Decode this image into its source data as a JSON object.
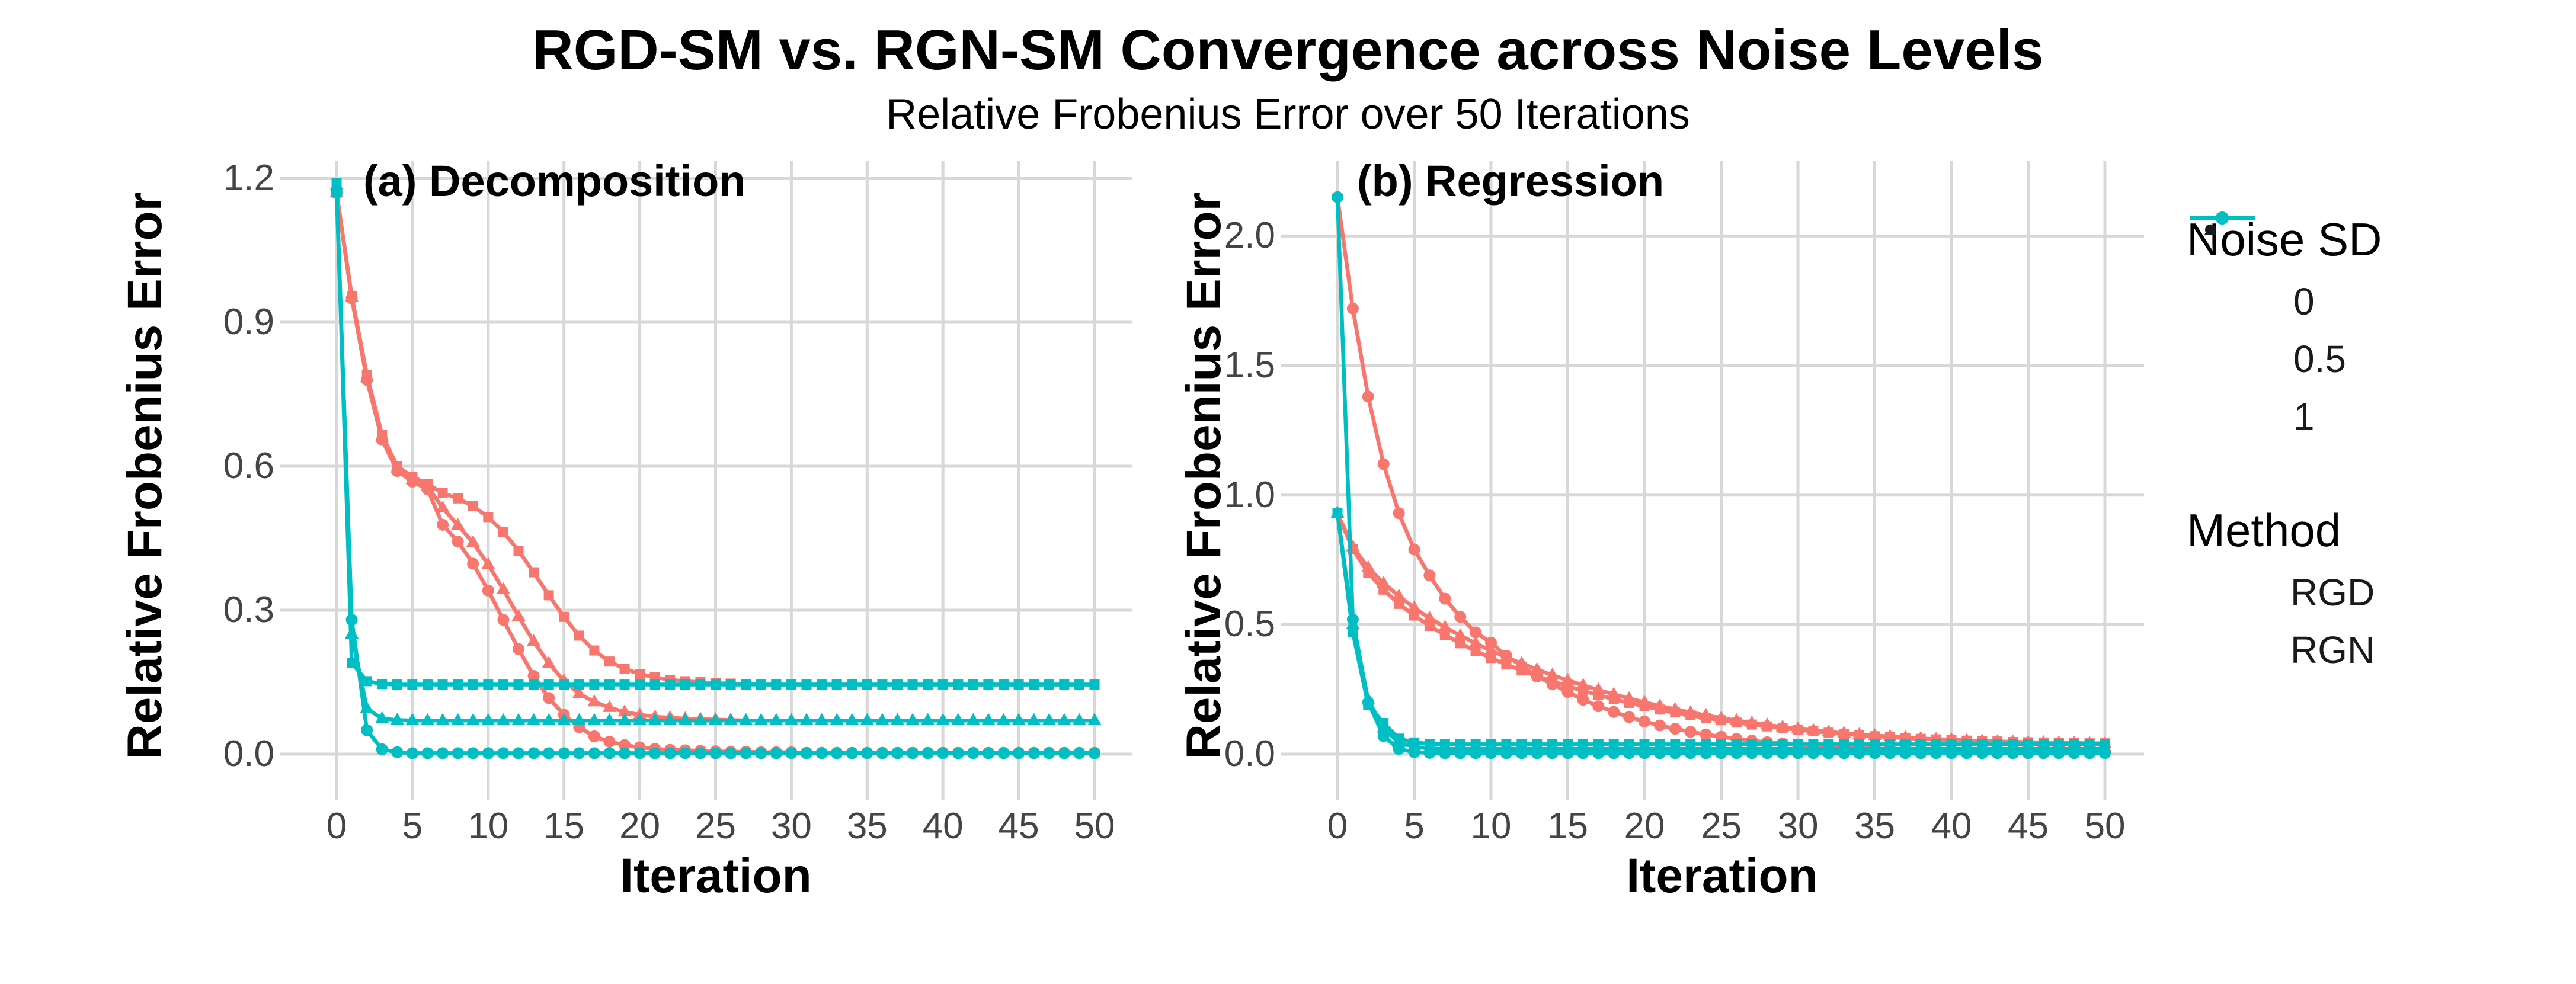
{
  "header": {
    "title": "RGD-SM vs. RGN-SM Convergence across Noise Levels",
    "subtitle": "Relative Frobenius Error over 50 Iterations"
  },
  "colors": {
    "rgd": "#F8766D",
    "rgn": "#00BFC4",
    "grid": "#D8D8D8",
    "tick_text": "#444444",
    "text": "#000000",
    "legend_key": "#1a1a1a"
  },
  "legend": {
    "noise": {
      "title": "Noise SD",
      "items": [
        {
          "shape": "circle",
          "label": "0"
        },
        {
          "shape": "triangle",
          "label": "0.5"
        },
        {
          "shape": "square",
          "label": "1"
        }
      ]
    },
    "method": {
      "title": "Method",
      "items": [
        {
          "label": "RGD",
          "color_key": "rgd"
        },
        {
          "label": "RGN",
          "color_key": "rgn"
        }
      ]
    }
  },
  "chart_data": {
    "type": "line",
    "x_label": "Iteration",
    "y_label": "Relative Frobenius Error",
    "x_ticks": [
      0,
      5,
      10,
      15,
      20,
      25,
      30,
      35,
      40,
      45,
      50
    ],
    "x_step": 1,
    "x_max": 50,
    "grid": "major-only",
    "legend_position": "right",
    "panels": [
      {
        "id": "a",
        "label": "(a) Decomposition",
        "y_ticks": [
          "1.2",
          "0.9",
          "0.6",
          "0.3",
          "0.0"
        ],
        "y_tick_values": [
          1.2,
          0.9,
          0.6,
          0.3,
          0.0
        ],
        "ylim": [
          0,
          1.2
        ],
        "series": [
          {
            "method": "RGD",
            "noise": "0",
            "shape": "circle",
            "values": [
              1.17,
              0.95,
              0.78,
              0.655,
              0.59,
              0.568,
              0.552,
              0.478,
              0.443,
              0.397,
              0.341,
              0.28,
              0.219,
              0.163,
              0.117,
              0.082,
              0.056,
              0.037,
              0.026,
              0.019,
              0.014,
              0.011,
              0.009,
              0.008,
              0.007,
              0.006,
              0.005,
              0.005,
              0.004,
              0.004,
              0.004,
              0.003,
              0.003,
              0.003,
              0.003,
              0.003,
              0.003,
              0.003,
              0.003,
              0.003,
              0.003,
              0.003,
              0.003,
              0.003,
              0.003,
              0.003,
              0.003,
              0.003,
              0.003,
              0.003,
              0.003
            ]
          },
          {
            "method": "RGD",
            "noise": "0.5",
            "shape": "triangle",
            "values": [
              1.17,
              0.952,
              0.785,
              0.66,
              0.595,
              0.572,
              0.558,
              0.513,
              0.477,
              0.441,
              0.395,
              0.343,
              0.287,
              0.235,
              0.189,
              0.153,
              0.126,
              0.109,
              0.097,
              0.088,
              0.082,
              0.078,
              0.076,
              0.074,
              0.073,
              0.072,
              0.071,
              0.07,
              0.07,
              0.07,
              0.07,
              0.07,
              0.07,
              0.07,
              0.07,
              0.07,
              0.07,
              0.07,
              0.07,
              0.07,
              0.07,
              0.07,
              0.07,
              0.07,
              0.07,
              0.07,
              0.07,
              0.07,
              0.07,
              0.07,
              0.07
            ]
          },
          {
            "method": "RGD",
            "noise": "1",
            "shape": "square",
            "values": [
              1.17,
              0.955,
              0.79,
              0.665,
              0.6,
              0.578,
              0.563,
              0.544,
              0.533,
              0.517,
              0.494,
              0.463,
              0.424,
              0.379,
              0.331,
              0.286,
              0.247,
              0.216,
              0.193,
              0.178,
              0.167,
              0.16,
              0.155,
              0.152,
              0.15,
              0.148,
              0.147,
              0.146,
              0.145,
              0.145,
              0.145,
              0.145,
              0.145,
              0.145,
              0.145,
              0.145,
              0.145,
              0.145,
              0.145,
              0.145,
              0.145,
              0.145,
              0.145,
              0.145,
              0.145,
              0.145,
              0.145,
              0.145,
              0.145,
              0.145,
              0.145
            ]
          },
          {
            "method": "RGN",
            "noise": "0",
            "shape": "circle",
            "values": [
              1.17,
              0.28,
              0.05,
              0.01,
              0.004,
              0.002,
              0.002,
              0.002,
              0.002,
              0.002,
              0.002,
              0.002,
              0.002,
              0.002,
              0.002,
              0.002,
              0.002,
              0.002,
              0.002,
              0.002,
              0.002,
              0.002,
              0.002,
              0.002,
              0.002,
              0.002,
              0.002,
              0.002,
              0.002,
              0.002,
              0.002,
              0.002,
              0.002,
              0.002,
              0.002,
              0.002,
              0.002,
              0.002,
              0.002,
              0.002,
              0.002,
              0.002,
              0.002,
              0.002,
              0.002,
              0.002,
              0.002,
              0.002,
              0.002,
              0.002,
              0.002
            ]
          },
          {
            "method": "RGN",
            "noise": "0.5",
            "shape": "triangle",
            "values": [
              1.185,
              0.25,
              0.095,
              0.074,
              0.071,
              0.07,
              0.07,
              0.07,
              0.07,
              0.07,
              0.07,
              0.07,
              0.07,
              0.07,
              0.07,
              0.07,
              0.07,
              0.07,
              0.07,
              0.07,
              0.07,
              0.07,
              0.07,
              0.07,
              0.07,
              0.07,
              0.07,
              0.07,
              0.07,
              0.07,
              0.07,
              0.07,
              0.07,
              0.07,
              0.07,
              0.07,
              0.07,
              0.07,
              0.07,
              0.07,
              0.07,
              0.07,
              0.07,
              0.07,
              0.07,
              0.07,
              0.07,
              0.07,
              0.07,
              0.07,
              0.07
            ]
          },
          {
            "method": "RGN",
            "noise": "1",
            "shape": "square",
            "values": [
              1.19,
              0.19,
              0.152,
              0.146,
              0.145,
              0.145,
              0.145,
              0.145,
              0.145,
              0.145,
              0.145,
              0.145,
              0.145,
              0.145,
              0.145,
              0.145,
              0.145,
              0.145,
              0.145,
              0.145,
              0.145,
              0.145,
              0.145,
              0.145,
              0.145,
              0.145,
              0.145,
              0.145,
              0.145,
              0.145,
              0.145,
              0.145,
              0.145,
              0.145,
              0.145,
              0.145,
              0.145,
              0.145,
              0.145,
              0.145,
              0.145,
              0.145,
              0.145,
              0.145,
              0.145,
              0.145,
              0.145,
              0.145,
              0.145,
              0.145,
              0.145
            ]
          }
        ]
      },
      {
        "id": "b",
        "label": "(b) Regression",
        "y_ticks": [
          "2.0",
          "1.5",
          "1.0",
          "0.5",
          "0.0"
        ],
        "y_tick_values": [
          2.0,
          1.5,
          1.0,
          0.5,
          0.0
        ],
        "ylim": [
          0,
          2.17
        ],
        "series": [
          {
            "method": "RGD",
            "noise": "0",
            "shape": "circle",
            "values": [
              2.15,
              1.72,
              1.38,
              1.12,
              0.93,
              0.79,
              0.69,
              0.6,
              0.53,
              0.47,
              0.43,
              0.38,
              0.34,
              0.3,
              0.27,
              0.24,
              0.21,
              0.185,
              0.163,
              0.143,
              0.126,
              0.111,
              0.098,
              0.086,
              0.076,
              0.067,
              0.059,
              0.052,
              0.046,
              0.041,
              0.036,
              0.032,
              0.029,
              0.026,
              0.024,
              0.022,
              0.02,
              0.019,
              0.017,
              0.016,
              0.015,
              0.014,
              0.014,
              0.013,
              0.013,
              0.012,
              0.012,
              0.012,
              0.011,
              0.011,
              0.011
            ]
          },
          {
            "method": "RGD",
            "noise": "0.5",
            "shape": "triangle",
            "values": [
              0.93,
              0.8,
              0.72,
              0.66,
              0.61,
              0.565,
              0.525,
              0.49,
              0.458,
              0.428,
              0.4,
              0.374,
              0.35,
              0.327,
              0.305,
              0.285,
              0.266,
              0.248,
              0.231,
              0.215,
              0.2,
              0.186,
              0.173,
              0.161,
              0.15,
              0.139,
              0.13,
              0.121,
              0.113,
              0.105,
              0.098,
              0.092,
              0.086,
              0.081,
              0.076,
              0.072,
              0.068,
              0.064,
              0.061,
              0.058,
              0.056,
              0.053,
              0.051,
              0.049,
              0.048,
              0.046,
              0.045,
              0.044,
              0.043,
              0.042,
              0.041
            ]
          },
          {
            "method": "RGD",
            "noise": "1",
            "shape": "square",
            "values": [
              0.93,
              0.79,
              0.7,
              0.635,
              0.58,
              0.535,
              0.495,
              0.46,
              0.428,
              0.398,
              0.371,
              0.346,
              0.323,
              0.301,
              0.281,
              0.262,
              0.244,
              0.228,
              0.212,
              0.198,
              0.185,
              0.172,
              0.161,
              0.15,
              0.14,
              0.131,
              0.122,
              0.114,
              0.107,
              0.1,
              0.094,
              0.088,
              0.083,
              0.078,
              0.073,
              0.069,
              0.066,
              0.062,
              0.059,
              0.057,
              0.054,
              0.052,
              0.05,
              0.049,
              0.047,
              0.046,
              0.045,
              0.044,
              0.043,
              0.042,
              0.042
            ]
          },
          {
            "method": "RGN",
            "noise": "0",
            "shape": "circle",
            "values": [
              2.15,
              0.52,
              0.2,
              0.07,
              0.02,
              0.008,
              0.005,
              0.004,
              0.004,
              0.004,
              0.004,
              0.004,
              0.004,
              0.004,
              0.004,
              0.004,
              0.004,
              0.004,
              0.004,
              0.004,
              0.004,
              0.004,
              0.004,
              0.004,
              0.004,
              0.004,
              0.004,
              0.004,
              0.004,
              0.004,
              0.004,
              0.004,
              0.004,
              0.004,
              0.004,
              0.004,
              0.004,
              0.004,
              0.004,
              0.004,
              0.004,
              0.004,
              0.004,
              0.004,
              0.004,
              0.004,
              0.004,
              0.004,
              0.004,
              0.004,
              0.004
            ]
          },
          {
            "method": "RGN",
            "noise": "0.5",
            "shape": "triangle",
            "values": [
              0.93,
              0.5,
              0.21,
              0.1,
              0.045,
              0.028,
              0.022,
              0.02,
              0.02,
              0.02,
              0.02,
              0.02,
              0.02,
              0.02,
              0.02,
              0.02,
              0.02,
              0.02,
              0.02,
              0.02,
              0.02,
              0.02,
              0.02,
              0.02,
              0.02,
              0.02,
              0.02,
              0.02,
              0.02,
              0.02,
              0.02,
              0.02,
              0.02,
              0.02,
              0.02,
              0.02,
              0.02,
              0.02,
              0.02,
              0.02,
              0.02,
              0.02,
              0.02,
              0.02,
              0.02,
              0.02,
              0.02,
              0.02,
              0.02,
              0.02,
              0.02
            ]
          },
          {
            "method": "RGN",
            "noise": "1",
            "shape": "square",
            "values": [
              0.93,
              0.47,
              0.19,
              0.12,
              0.06,
              0.045,
              0.04,
              0.038,
              0.038,
              0.038,
              0.038,
              0.038,
              0.038,
              0.038,
              0.038,
              0.038,
              0.038,
              0.038,
              0.038,
              0.038,
              0.038,
              0.038,
              0.038,
              0.038,
              0.038,
              0.038,
              0.038,
              0.038,
              0.038,
              0.038,
              0.038,
              0.038,
              0.038,
              0.038,
              0.038,
              0.038,
              0.038,
              0.038,
              0.038,
              0.038,
              0.038,
              0.038,
              0.038,
              0.038,
              0.038,
              0.038,
              0.038,
              0.038,
              0.038,
              0.038,
              0.038
            ]
          }
        ]
      }
    ]
  }
}
